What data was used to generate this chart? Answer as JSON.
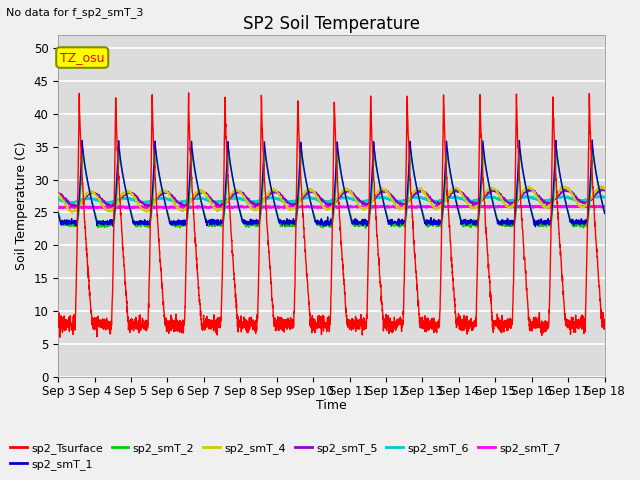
{
  "title": "SP2 Soil Temperature",
  "subtitle": "No data for f_sp2_smT_3",
  "ylabel": "Soil Temperature (C)",
  "xlabel": "Time",
  "tz_label": "TZ_osu",
  "ylim": [
    0,
    52
  ],
  "yticks": [
    0,
    5,
    10,
    15,
    20,
    25,
    30,
    35,
    40,
    45,
    50
  ],
  "num_days": 15,
  "series": {
    "sp2_Tsurface": "#ff0000",
    "sp2_smT_1": "#0000cc",
    "sp2_smT_2": "#00cc00",
    "sp2_smT_4": "#cccc00",
    "sp2_smT_5": "#9900cc",
    "sp2_smT_6": "#00cccc",
    "sp2_smT_7": "#ff00ff"
  },
  "bg_color": "#dcdcdc",
  "grid_color": "#ffffff",
  "title_fontsize": 12,
  "label_fontsize": 9,
  "tick_fontsize": 8.5
}
